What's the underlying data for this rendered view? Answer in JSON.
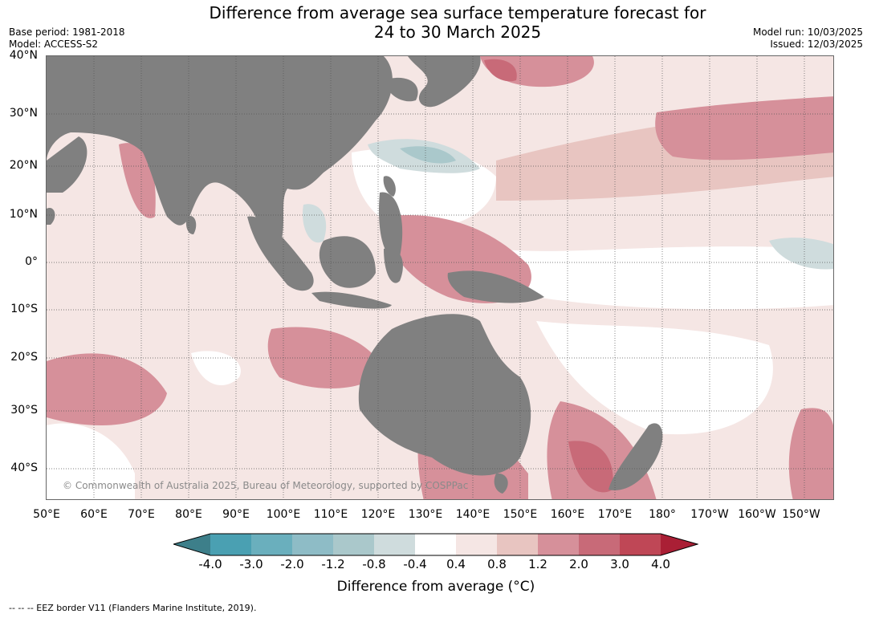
{
  "title_line1": "Difference from average sea surface temperature forecast for",
  "title_line2": "24 to 30 March 2025",
  "base_period": "Base period: 1981-2018",
  "model": "Model: ACCESS-S2",
  "model_run": "Model run: 10/03/2025",
  "issued": "Issued: 12/03/2025",
  "lat_labels": [
    "40°N",
    "30°N",
    "20°N",
    "10°N",
    "0°",
    "10°S",
    "20°S",
    "30°S",
    "40°S"
  ],
  "lon_labels": [
    "50°E",
    "60°E",
    "70°E",
    "80°E",
    "90°E",
    "100°E",
    "110°E",
    "120°E",
    "130°E",
    "140°E",
    "150°E",
    "160°E",
    "170°E",
    "180°",
    "170°W",
    "160°W",
    "150°W"
  ],
  "copyright": "© Commonwealth of Australia 2025, Bureau of Meteorology, supported by COSPPac",
  "colorbar": {
    "title": "Difference from average (°C)",
    "ticks": [
      "-4.0",
      "-3.0",
      "-2.0",
      "-1.2",
      "-0.8",
      "-0.4",
      "0.4",
      "0.8",
      "1.2",
      "2.0",
      "3.0",
      "4.0"
    ],
    "colors": [
      "#3d7f8a",
      "#4aa0b2",
      "#6aafbd",
      "#8ebcc6",
      "#aac8cb",
      "#cfdcdd",
      "#ffffff",
      "#f5e6e4",
      "#e8c5c1",
      "#d6909a",
      "#c86a78",
      "#bf4756",
      "#aa1f35"
    ]
  },
  "land_color": "#808080",
  "footnote": "--  --  -- EEZ border V11 (Flanders Marine Institute, 2019)."
}
